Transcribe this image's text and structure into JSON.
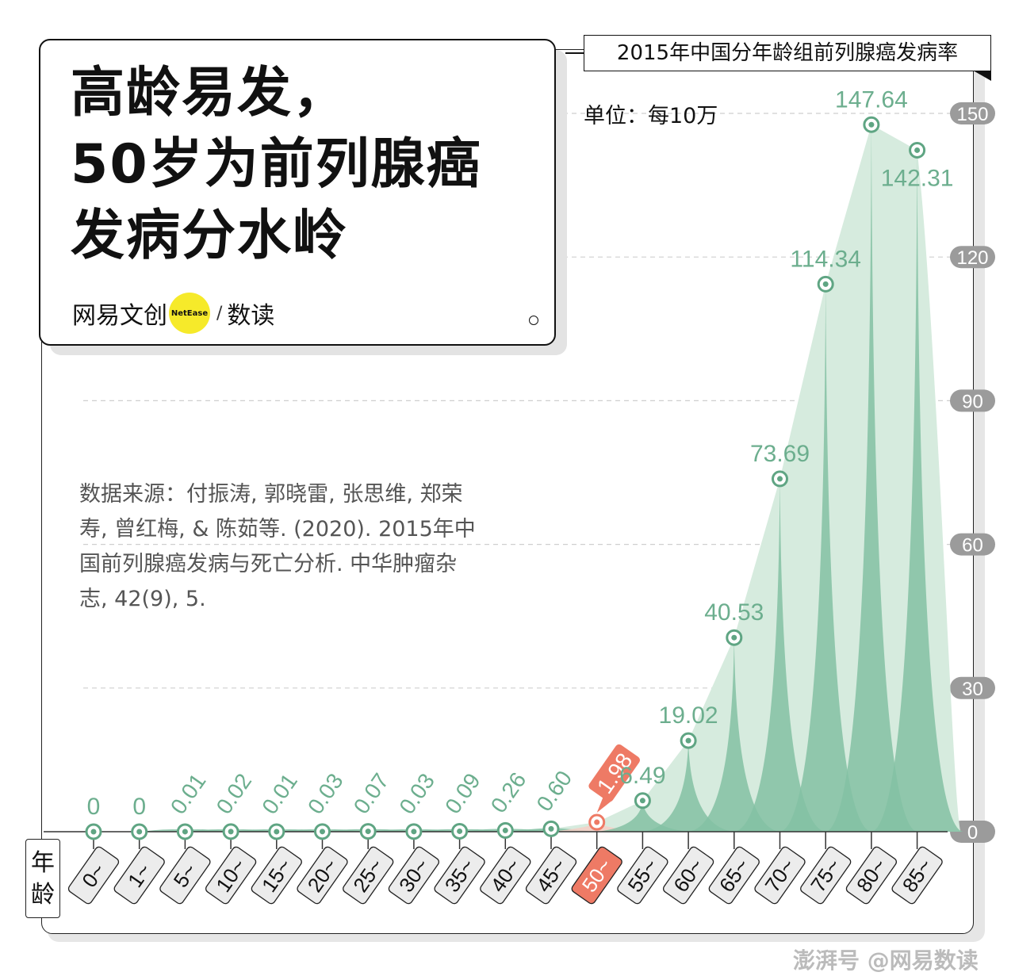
{
  "title_lines": [
    "高龄易发，",
    "50岁为前列腺癌",
    "发病分水岭"
  ],
  "brand": {
    "name": "网易文创",
    "badge": "NetEase",
    "section": "数读"
  },
  "chart_title": "2015年中国分年龄组前列腺癌发病率",
  "unit": "单位：每10万",
  "source_text": "数据来源：付振涛, 郭晓雷, 张思维, 郑荣寿, 曾红梅, & 陈茹等. (2020). 2015年中国前列腺癌发病与死亡分析. 中华肿瘤杂志, 42(9), 5.",
  "x_axis_label": [
    "年",
    "龄"
  ],
  "watermark": "澎湃号 @网易数读",
  "colors": {
    "peak": "#84c1a3",
    "envelope": "#d6ebde",
    "label": "#6cae8e",
    "marker": "#5fa583",
    "highlight": "#ee7a65",
    "tick_bg": "#9b9b9b"
  },
  "chart_data": {
    "type": "area",
    "title": "2015年中国分年龄组前列腺癌发病率",
    "xlabel": "年龄",
    "ylabel": "单位：每10万",
    "categories": [
      "0~",
      "1~",
      "5~",
      "10~",
      "15~",
      "20~",
      "25~",
      "30~",
      "35~",
      "40~",
      "45~",
      "50~",
      "55~",
      "60~",
      "65~",
      "70~",
      "75~",
      "80~",
      "85~"
    ],
    "values": [
      0,
      0,
      0.01,
      0.02,
      0.01,
      0.03,
      0.07,
      0.03,
      0.09,
      0.26,
      0.6,
      1.98,
      6.49,
      19.02,
      40.53,
      73.69,
      114.34,
      147.64,
      142.31
    ],
    "value_labels": [
      "0",
      "0",
      "0.01",
      "0.02",
      "0.01",
      "0.03",
      "0.07",
      "0.03",
      "0.09",
      "0.26",
      "0.60",
      "1.98",
      "6.49",
      "19.02",
      "40.53",
      "73.69",
      "114.34",
      "147.64",
      "142.31"
    ],
    "highlight_category": "50~",
    "ylim": [
      0,
      150
    ],
    "yticks": [
      "0",
      "30",
      "60",
      "90",
      "120",
      "150"
    ],
    "grid": true
  }
}
